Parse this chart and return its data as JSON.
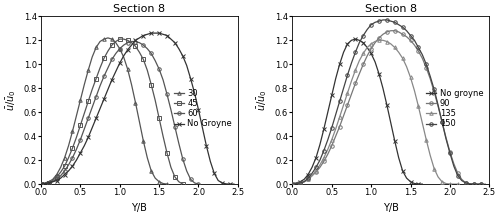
{
  "title": "Section 8",
  "xlabel": "Y/B",
  "ylabel_left": "$\\bar{u}/\\bar{u}_0$",
  "ylabel_right": "$\\bar{u}/\\bar{u}_0$",
  "xlim": [
    0,
    2.5
  ],
  "ylim": [
    0,
    1.4
  ],
  "yticks": [
    0,
    0.2,
    0.4,
    0.6,
    0.8,
    1.0,
    1.2,
    1.4
  ],
  "xticks": [
    0,
    0.5,
    1.0,
    1.5,
    2.0,
    2.5
  ],
  "left_curves": {
    "30": {
      "x": [
        0.0,
        0.05,
        0.1,
        0.15,
        0.2,
        0.25,
        0.3,
        0.35,
        0.4,
        0.45,
        0.5,
        0.55,
        0.6,
        0.65,
        0.7,
        0.75,
        0.8,
        0.85,
        0.9,
        0.95,
        1.0,
        1.05,
        1.1,
        1.15,
        1.2,
        1.25,
        1.3,
        1.35,
        1.4,
        1.45,
        1.5,
        1.55,
        1.6
      ],
      "y": [
        0.0,
        0.01,
        0.02,
        0.04,
        0.08,
        0.14,
        0.22,
        0.32,
        0.44,
        0.57,
        0.7,
        0.83,
        0.95,
        1.06,
        1.14,
        1.19,
        1.21,
        1.22,
        1.21,
        1.18,
        1.13,
        1.06,
        0.96,
        0.83,
        0.68,
        0.52,
        0.36,
        0.22,
        0.11,
        0.05,
        0.02,
        0.005,
        0.0
      ],
      "marker": "^",
      "color": "#555555",
      "label": "30",
      "markersize": 2.5,
      "markevery": 2
    },
    "45": {
      "x": [
        0.0,
        0.05,
        0.1,
        0.15,
        0.2,
        0.25,
        0.3,
        0.35,
        0.4,
        0.45,
        0.5,
        0.55,
        0.6,
        0.65,
        0.7,
        0.75,
        0.8,
        0.85,
        0.9,
        0.95,
        1.0,
        1.05,
        1.1,
        1.15,
        1.2,
        1.25,
        1.3,
        1.35,
        1.4,
        1.45,
        1.5,
        1.55,
        1.6,
        1.65,
        1.7,
        1.75,
        1.8
      ],
      "y": [
        0.0,
        0.005,
        0.01,
        0.03,
        0.06,
        0.1,
        0.15,
        0.22,
        0.3,
        0.39,
        0.49,
        0.59,
        0.69,
        0.79,
        0.88,
        0.97,
        1.05,
        1.11,
        1.16,
        1.19,
        1.21,
        1.21,
        1.2,
        1.18,
        1.15,
        1.1,
        1.04,
        0.95,
        0.83,
        0.7,
        0.55,
        0.4,
        0.26,
        0.14,
        0.06,
        0.02,
        0.0
      ],
      "marker": "s",
      "color": "#555555",
      "label": "45",
      "markersize": 2.5,
      "markevery": 2
    },
    "60": {
      "x": [
        0.0,
        0.05,
        0.1,
        0.15,
        0.2,
        0.25,
        0.3,
        0.35,
        0.4,
        0.45,
        0.5,
        0.55,
        0.6,
        0.65,
        0.7,
        0.75,
        0.8,
        0.85,
        0.9,
        0.95,
        1.0,
        1.05,
        1.1,
        1.15,
        1.2,
        1.25,
        1.3,
        1.35,
        1.4,
        1.45,
        1.5,
        1.55,
        1.6,
        1.65,
        1.7,
        1.75,
        1.8,
        1.85,
        1.9,
        1.95,
        2.0
      ],
      "y": [
        0.0,
        0.005,
        0.01,
        0.02,
        0.04,
        0.07,
        0.11,
        0.16,
        0.22,
        0.29,
        0.37,
        0.46,
        0.55,
        0.64,
        0.73,
        0.82,
        0.9,
        0.97,
        1.04,
        1.09,
        1.13,
        1.16,
        1.18,
        1.19,
        1.19,
        1.18,
        1.16,
        1.13,
        1.09,
        1.03,
        0.96,
        0.87,
        0.75,
        0.62,
        0.48,
        0.34,
        0.21,
        0.11,
        0.04,
        0.01,
        0.0
      ],
      "marker": "o",
      "color": "#555555",
      "label": "60",
      "markersize": 2.5,
      "markevery": 2
    },
    "No Groyne": {
      "x": [
        0.0,
        0.05,
        0.1,
        0.15,
        0.2,
        0.25,
        0.3,
        0.35,
        0.4,
        0.45,
        0.5,
        0.55,
        0.6,
        0.65,
        0.7,
        0.75,
        0.8,
        0.85,
        0.9,
        0.95,
        1.0,
        1.05,
        1.1,
        1.15,
        1.2,
        1.25,
        1.3,
        1.35,
        1.4,
        1.45,
        1.5,
        1.55,
        1.6,
        1.65,
        1.7,
        1.75,
        1.8,
        1.85,
        1.9,
        1.95,
        2.0,
        2.05,
        2.1,
        2.15,
        2.2,
        2.25,
        2.3,
        2.35,
        2.4,
        2.45
      ],
      "y": [
        0.0,
        0.005,
        0.01,
        0.02,
        0.03,
        0.05,
        0.08,
        0.11,
        0.15,
        0.2,
        0.26,
        0.32,
        0.39,
        0.47,
        0.55,
        0.63,
        0.71,
        0.79,
        0.87,
        0.94,
        1.01,
        1.07,
        1.12,
        1.16,
        1.2,
        1.22,
        1.24,
        1.25,
        1.26,
        1.26,
        1.26,
        1.25,
        1.24,
        1.21,
        1.18,
        1.13,
        1.07,
        0.99,
        0.88,
        0.76,
        0.62,
        0.47,
        0.32,
        0.19,
        0.09,
        0.03,
        0.01,
        0.002,
        0.0,
        0.0
      ],
      "marker": "x",
      "color": "#333333",
      "label": "No Groyne",
      "markersize": 3,
      "markevery": 2
    }
  },
  "right_curves": {
    "No groyne": {
      "x": [
        0.0,
        0.05,
        0.1,
        0.15,
        0.2,
        0.25,
        0.3,
        0.35,
        0.4,
        0.45,
        0.5,
        0.55,
        0.6,
        0.65,
        0.7,
        0.75,
        0.8,
        0.85,
        0.9,
        0.95,
        1.0,
        1.05,
        1.1,
        1.15,
        1.2,
        1.25,
        1.3,
        1.35,
        1.4,
        1.45,
        1.5,
        1.55,
        1.6,
        1.65
      ],
      "y": [
        0.0,
        0.01,
        0.02,
        0.04,
        0.08,
        0.14,
        0.22,
        0.33,
        0.46,
        0.6,
        0.74,
        0.88,
        1.0,
        1.1,
        1.17,
        1.2,
        1.21,
        1.2,
        1.18,
        1.14,
        1.09,
        1.02,
        0.92,
        0.8,
        0.66,
        0.51,
        0.36,
        0.22,
        0.11,
        0.05,
        0.02,
        0.005,
        0.001,
        0.0
      ],
      "marker": "x",
      "color": "#333333",
      "label": "No groyne",
      "markersize": 3,
      "markevery": 2
    },
    "90": {
      "x": [
        0.0,
        0.05,
        0.1,
        0.15,
        0.2,
        0.25,
        0.3,
        0.35,
        0.4,
        0.45,
        0.5,
        0.55,
        0.6,
        0.65,
        0.7,
        0.75,
        0.8,
        0.85,
        0.9,
        0.95,
        1.0,
        1.05,
        1.1,
        1.15,
        1.2,
        1.25,
        1.3,
        1.35,
        1.4,
        1.45,
        1.5,
        1.55,
        1.6,
        1.65,
        1.7,
        1.75,
        1.8,
        1.85,
        1.9,
        1.95,
        2.0,
        2.05,
        2.1,
        2.15,
        2.2,
        2.25,
        2.3,
        2.35,
        2.4,
        2.45
      ],
      "y": [
        0.0,
        0.005,
        0.01,
        0.02,
        0.04,
        0.07,
        0.1,
        0.14,
        0.19,
        0.25,
        0.32,
        0.4,
        0.48,
        0.57,
        0.66,
        0.75,
        0.84,
        0.92,
        1.0,
        1.07,
        1.13,
        1.18,
        1.22,
        1.25,
        1.27,
        1.28,
        1.28,
        1.27,
        1.25,
        1.23,
        1.2,
        1.16,
        1.11,
        1.05,
        0.97,
        0.88,
        0.77,
        0.65,
        0.52,
        0.39,
        0.27,
        0.17,
        0.09,
        0.04,
        0.01,
        0.003,
        0.0,
        0.0,
        0.0,
        0.0
      ],
      "marker": "o",
      "color": "#777777",
      "label": "90",
      "markersize": 2.5,
      "markevery": 2
    },
    "135": {
      "x": [
        0.0,
        0.05,
        0.1,
        0.15,
        0.2,
        0.25,
        0.3,
        0.35,
        0.4,
        0.45,
        0.5,
        0.55,
        0.6,
        0.65,
        0.7,
        0.75,
        0.8,
        0.85,
        0.9,
        0.95,
        1.0,
        1.05,
        1.1,
        1.15,
        1.2,
        1.25,
        1.3,
        1.35,
        1.4,
        1.45,
        1.5,
        1.55,
        1.6,
        1.65,
        1.7,
        1.75,
        1.8,
        1.85,
        1.9,
        1.95,
        2.0,
        2.05,
        2.1
      ],
      "y": [
        0.0,
        0.005,
        0.01,
        0.02,
        0.04,
        0.07,
        0.11,
        0.16,
        0.22,
        0.29,
        0.37,
        0.46,
        0.56,
        0.66,
        0.76,
        0.86,
        0.95,
        1.03,
        1.09,
        1.14,
        1.17,
        1.19,
        1.2,
        1.2,
        1.19,
        1.17,
        1.14,
        1.1,
        1.05,
        0.98,
        0.89,
        0.78,
        0.65,
        0.51,
        0.37,
        0.24,
        0.13,
        0.06,
        0.02,
        0.005,
        0.001,
        0.0,
        0.0
      ],
      "marker": "^",
      "color": "#888888",
      "label": "135",
      "markersize": 2.5,
      "markevery": 2
    },
    "150": {
      "x": [
        0.0,
        0.05,
        0.1,
        0.15,
        0.2,
        0.25,
        0.3,
        0.35,
        0.4,
        0.45,
        0.5,
        0.55,
        0.6,
        0.65,
        0.7,
        0.75,
        0.8,
        0.85,
        0.9,
        0.95,
        1.0,
        1.05,
        1.1,
        1.15,
        1.2,
        1.25,
        1.3,
        1.35,
        1.4,
        1.45,
        1.5,
        1.55,
        1.6,
        1.65,
        1.7,
        1.75,
        1.8,
        1.85,
        1.9,
        1.95,
        2.0,
        2.05,
        2.1,
        2.15,
        2.2,
        2.25,
        2.3,
        2.35,
        2.4
      ],
      "y": [
        0.0,
        0.005,
        0.01,
        0.02,
        0.05,
        0.09,
        0.14,
        0.2,
        0.28,
        0.37,
        0.47,
        0.58,
        0.69,
        0.8,
        0.91,
        1.01,
        1.1,
        1.18,
        1.24,
        1.29,
        1.33,
        1.35,
        1.36,
        1.37,
        1.37,
        1.36,
        1.35,
        1.33,
        1.31,
        1.28,
        1.24,
        1.2,
        1.14,
        1.08,
        1.0,
        0.9,
        0.79,
        0.66,
        0.52,
        0.38,
        0.26,
        0.15,
        0.07,
        0.03,
        0.01,
        0.002,
        0.0,
        0.0,
        0.0
      ],
      "marker": "o",
      "color": "#444444",
      "label": "150",
      "markersize": 2.5,
      "markevery": 2
    }
  },
  "legend_left_order": [
    "30",
    "45",
    "60",
    "No Groyne"
  ],
  "legend_right_order": [
    "No groyne",
    "90",
    "135",
    "150"
  ],
  "background_color": "#ffffff",
  "linewidth": 0.9,
  "fontsize_title": 8,
  "fontsize_label": 7,
  "fontsize_tick": 6,
  "fontsize_legend": 6
}
